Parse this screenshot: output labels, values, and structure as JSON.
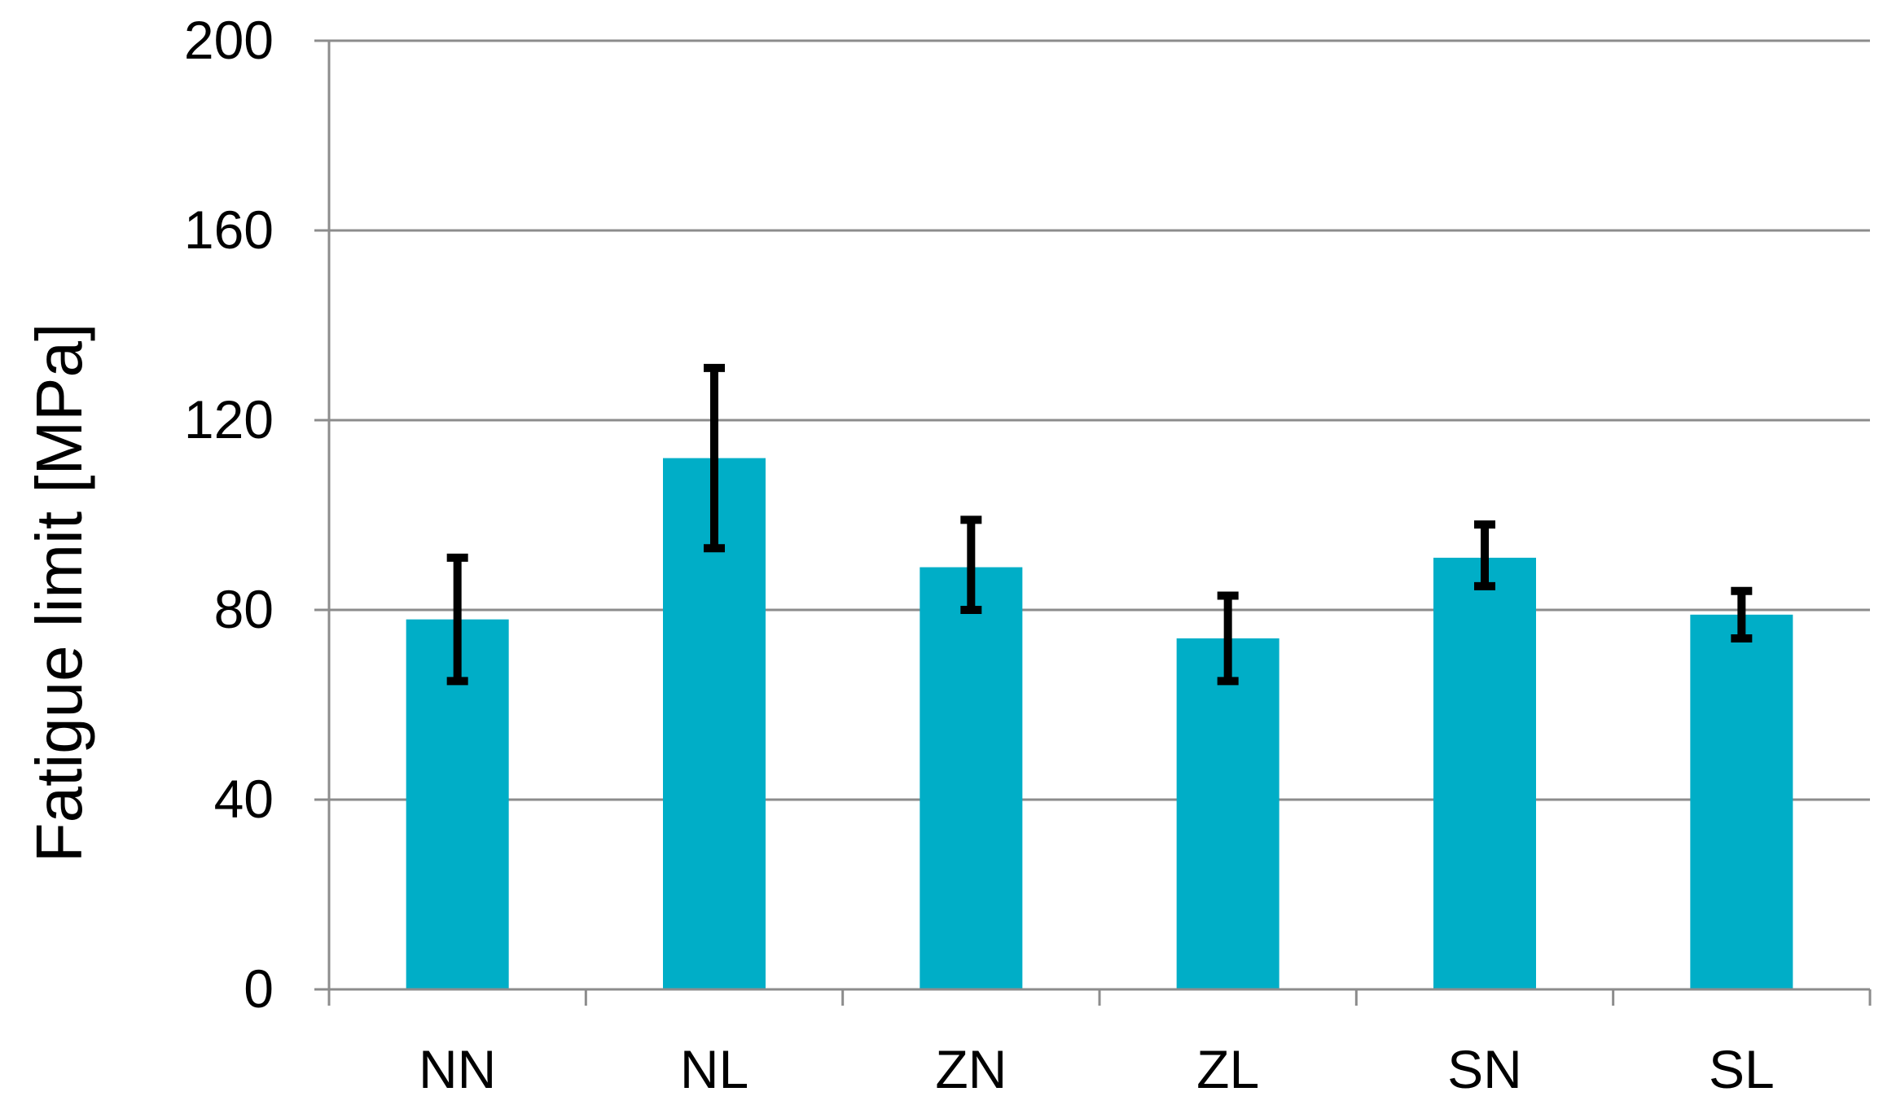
{
  "chart_data": {
    "type": "bar",
    "title": "",
    "xlabel": "",
    "ylabel": "Fatigue limit [MPa]",
    "categories": [
      "NN",
      "NL",
      "ZN",
      "ZL",
      "SN",
      "SL"
    ],
    "values": [
      78,
      112,
      89,
      74,
      91,
      79
    ],
    "error_low": [
      65,
      93,
      80,
      65,
      85,
      74
    ],
    "error_high": [
      91,
      131,
      99,
      83,
      98,
      84
    ],
    "ylim": [
      0,
      200
    ],
    "yticks": [
      0,
      40,
      80,
      120,
      160,
      200
    ],
    "grid": true,
    "legend": "none",
    "bar_color": "#00AEC7",
    "error_color": "#000000",
    "grid_color": "#8C8C8C"
  }
}
